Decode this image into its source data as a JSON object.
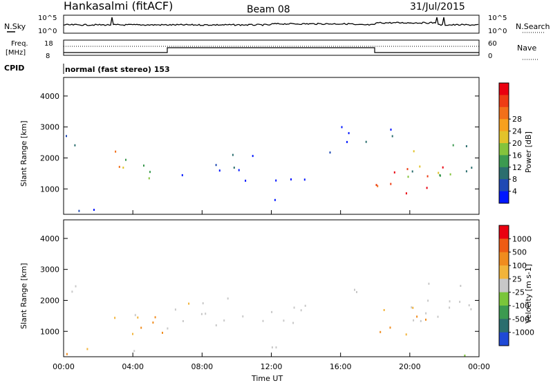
{
  "header": {
    "station": "Hankasalmi (fitACF)",
    "beam": "Beam 08",
    "date": "31/Jul/2015"
  },
  "top_panel": {
    "left_label": "N.Sky",
    "right_label": "N.Search",
    "yticks_left": [
      "10^5",
      "10^0"
    ],
    "yticks_right": [
      "10^5",
      "10^0"
    ]
  },
  "freq_panel": {
    "left_label_1": "Freq.",
    "left_label_2": "[MHz]",
    "right_label": "Nave",
    "yticks_left": [
      "18",
      "8"
    ],
    "yticks_right": [
      "60",
      "0"
    ]
  },
  "cpid": {
    "label": "CPID",
    "text": "normal (fast stereo) 153"
  },
  "colors": {
    "mark": "#1f49d6",
    "grey": "#c8c8c8"
  },
  "chart_data": [
    {
      "type": "heatmap",
      "title": "Power",
      "ylabel": "Slant Range [km]",
      "xlabel": "",
      "xlim": [
        0,
        24
      ],
      "ylim": [
        180,
        4600
      ],
      "x_ticks": [
        "00:00",
        "04:00",
        "08:00",
        "12:00",
        "16:00",
        "20:00",
        "00:00"
      ],
      "y_ticks": [
        1000,
        2000,
        3000,
        4000
      ],
      "colorbar_label": "Power [dB]",
      "colorbar_ticks": [
        "4",
        "8",
        "12",
        "16",
        "20",
        "24",
        "28"
      ],
      "colorbar_colors": [
        "#0016ff",
        "#1f49b4",
        "#2b6e6e",
        "#3c9a50",
        "#84c33c",
        "#e2c32a",
        "#f7a01e",
        "#f2701a",
        "#ee3c14",
        "#ea0010"
      ],
      "regions": [
        {
          "x": [
            0,
            3.5
          ],
          "y": [
            180,
            500
          ],
          "level": 0.2
        },
        {
          "x": [
            0,
            1.5
          ],
          "y": [
            2300,
            2800
          ],
          "level": 0.15
        },
        {
          "x": [
            2.8,
            6
          ],
          "y": [
            1300,
            2300
          ],
          "level": 0.55
        },
        {
          "x": [
            6.2,
            14
          ],
          "y": [
            1200,
            1500
          ],
          "level": 0.1
        },
        {
          "x": [
            6.5,
            12
          ],
          "y": [
            1600,
            1900
          ],
          "level": 0.1
        },
        {
          "x": [
            8.5,
            11
          ],
          "y": [
            2000,
            2300
          ],
          "level": 0.1
        },
        {
          "x": [
            11.5,
            13
          ],
          "y": [
            500,
            900
          ],
          "level": 0.15
        },
        {
          "x": [
            15,
            16.5
          ],
          "y": [
            1950,
            2300
          ],
          "level": 0.4
        },
        {
          "x": [
            18,
            22
          ],
          "y": [
            800,
            1800
          ],
          "level": 0.9
        },
        {
          "x": [
            19.5,
            24
          ],
          "y": [
            1400,
            2600
          ],
          "level": 0.5
        },
        {
          "x": [
            16,
            20
          ],
          "y": [
            2500,
            3200
          ],
          "level": 0.05
        }
      ]
    },
    {
      "type": "heatmap",
      "title": "Velocity",
      "ylabel": "Slant Range [km]",
      "xlabel": "Time UT",
      "xlim": [
        0,
        24
      ],
      "ylim": [
        180,
        4600
      ],
      "x_ticks": [
        "00:00",
        "04:00",
        "08:00",
        "12:00",
        "16:00",
        "20:00",
        "00:00"
      ],
      "y_ticks": [
        1000,
        2000,
        3000,
        4000
      ],
      "colorbar_label": "Velocity [m s-1]",
      "colorbar_ticks": [
        "1000",
        "500",
        "100",
        "25",
        "-25",
        "-100",
        "-500",
        "-1000"
      ],
      "colorbar_colors": [
        "#1f49d6",
        "#2b6e6e",
        "#3c9a50",
        "#7ac63a",
        "#c8c8c8",
        "#f2b43a",
        "#f08c1e",
        "#ee5c14",
        "#ea0010"
      ],
      "regions": [
        {
          "x": [
            0,
            1.5
          ],
          "y": [
            2300,
            2800
          ],
          "level": "grey"
        },
        {
          "x": [
            2.5,
            6
          ],
          "y": [
            300,
            1600
          ],
          "level": "orange"
        },
        {
          "x": [
            0,
            3
          ],
          "y": [
            180,
            500
          ],
          "level": "orange"
        },
        {
          "x": [
            6.2,
            14
          ],
          "y": [
            1200,
            2200
          ],
          "level": "grey"
        },
        {
          "x": [
            11.5,
            13
          ],
          "y": [
            400,
            900
          ],
          "level": "grey"
        },
        {
          "x": [
            15,
            17
          ],
          "y": [
            1900,
            2400
          ],
          "level": "grey"
        },
        {
          "x": [
            18,
            21
          ],
          "y": [
            800,
            1800
          ],
          "level": "orange"
        },
        {
          "x": [
            19.5,
            24
          ],
          "y": [
            1300,
            2600
          ],
          "level": "grey"
        },
        {
          "x": [
            22,
            24
          ],
          "y": [
            180,
            500
          ],
          "level": "green"
        }
      ]
    }
  ]
}
